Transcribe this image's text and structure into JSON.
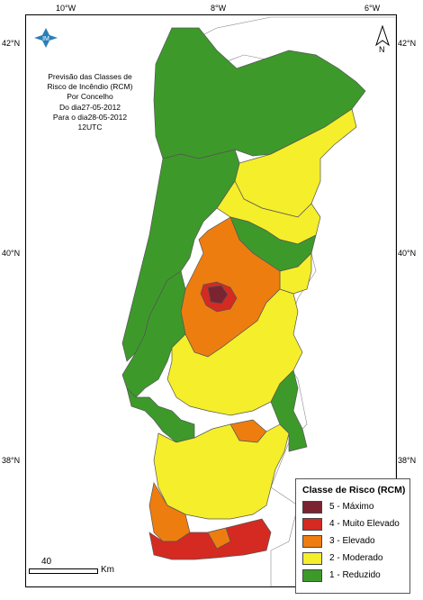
{
  "axes": {
    "longitudes": [
      "10°W",
      "8°W",
      "6°W"
    ],
    "latitudes_left": [
      "42°N",
      "40°N",
      "38°N"
    ],
    "latitudes_right": [
      "42°N",
      "40°N",
      "38°N"
    ]
  },
  "title_block": {
    "line1": "Previsão das Classes de",
    "line2": "Risco de Incêndio (RCM)",
    "line3": "Por Concelho",
    "line4": "Do dia27-05-2012",
    "line5": "Para o dia28-05-2012",
    "line6": "12UTC"
  },
  "north_arrow": {
    "letter": "N"
  },
  "logo": {
    "icon": "im-logo-icon",
    "text": "IM"
  },
  "scale": {
    "value": "40",
    "unit": "Km"
  },
  "legend": {
    "title": "Classe de Risco (RCM)",
    "items": [
      {
        "label": "5 - Máximo",
        "color": "#7b2431"
      },
      {
        "label": "4 - Muito Elevado",
        "color": "#d42a22"
      },
      {
        "label": "3 - Elevado",
        "color": "#ee7d10"
      },
      {
        "label": "2 - Moderado",
        "color": "#f5ee2a"
      },
      {
        "label": "1 - Reduzido",
        "color": "#3d9a2a"
      }
    ]
  },
  "colors": {
    "reduzido": "#3d9a2a",
    "moderado": "#f5ee2a",
    "elevado": "#ee7d10",
    "muito_elevado": "#d42a22",
    "maximo": "#7b2431",
    "spain": "#ffffff",
    "sea": "#ffffff"
  }
}
